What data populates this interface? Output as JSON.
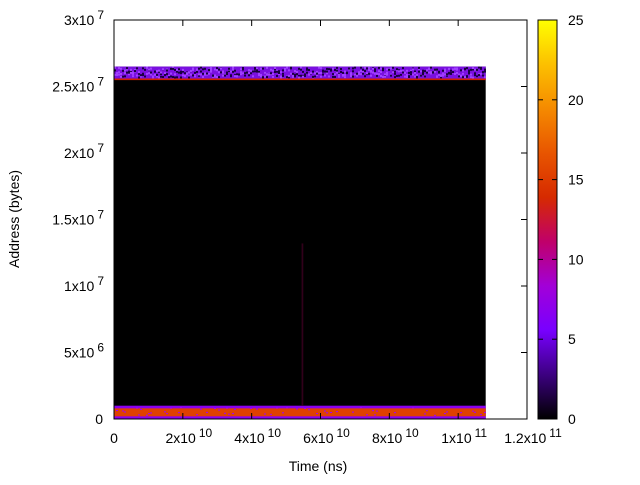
{
  "chart_data": {
    "type": "heatmap",
    "title": "",
    "xlabel": "Time (ns)",
    "ylabel": "Address (bytes)",
    "xlim": [
      0,
      120000000000.0
    ],
    "ylim": [
      0,
      30000000.0
    ],
    "data_extent": {
      "x": [
        0,
        108000000000.0
      ],
      "y": [
        0,
        26500000.0
      ]
    },
    "x_ticks": [
      {
        "value": 0,
        "mant": "0",
        "exp": ""
      },
      {
        "value": 20000000000.0,
        "mant": "2x10",
        "exp": "10"
      },
      {
        "value": 40000000000.0,
        "mant": "4x10",
        "exp": "10"
      },
      {
        "value": 60000000000.0,
        "mant": "6x10",
        "exp": "10"
      },
      {
        "value": 80000000000.0,
        "mant": "8x10",
        "exp": "10"
      },
      {
        "value": 100000000000.0,
        "mant": "1x10",
        "exp": "11"
      },
      {
        "value": 120000000000.0,
        "mant": "1.2x10",
        "exp": "11"
      }
    ],
    "y_ticks": [
      {
        "value": 0,
        "mant": "0",
        "exp": ""
      },
      {
        "value": 5000000.0,
        "mant": "5x10",
        "exp": "6"
      },
      {
        "value": 10000000.0,
        "mant": "1x10",
        "exp": "7"
      },
      {
        "value": 15000000.0,
        "mant": "1.5x10",
        "exp": "7"
      },
      {
        "value": 20000000.0,
        "mant": "2x10",
        "exp": "7"
      },
      {
        "value": 25000000.0,
        "mant": "2.5x10",
        "exp": "7"
      },
      {
        "value": 30000000.0,
        "mant": "3x10",
        "exp": "7"
      }
    ],
    "bands": [
      {
        "y": [
          25500000.0,
          26500000.0
        ],
        "level": 7,
        "note_color": "#7a10e0"
      },
      {
        "y": [
          25480000.0,
          25600000.0
        ],
        "level": 14,
        "note_color": "#d02000"
      },
      {
        "y": [
          0,
          1000000.0
        ],
        "level": 8,
        "note_color": "#8a00f0"
      },
      {
        "y": [
          200000.0,
          800000.0
        ],
        "level": 17,
        "note_color": "#e04000"
      },
      {
        "x": [
          54500000000.0,
          55000000000.0
        ],
        "y": [
          1000000.0,
          13200000.0
        ],
        "level": 2,
        "note_color": "#30001a"
      }
    ],
    "background_level": 0,
    "colorbar": {
      "range": [
        0,
        25
      ],
      "ticks": [
        "0",
        "5",
        "10",
        "15",
        "20",
        "25"
      ],
      "palette": [
        "#000000",
        "#3c0080",
        "#7800ff",
        "#a200d8",
        "#c0006a",
        "#d62a00",
        "#e85500",
        "#f58a00",
        "#fcc000",
        "#ffff00"
      ]
    }
  }
}
